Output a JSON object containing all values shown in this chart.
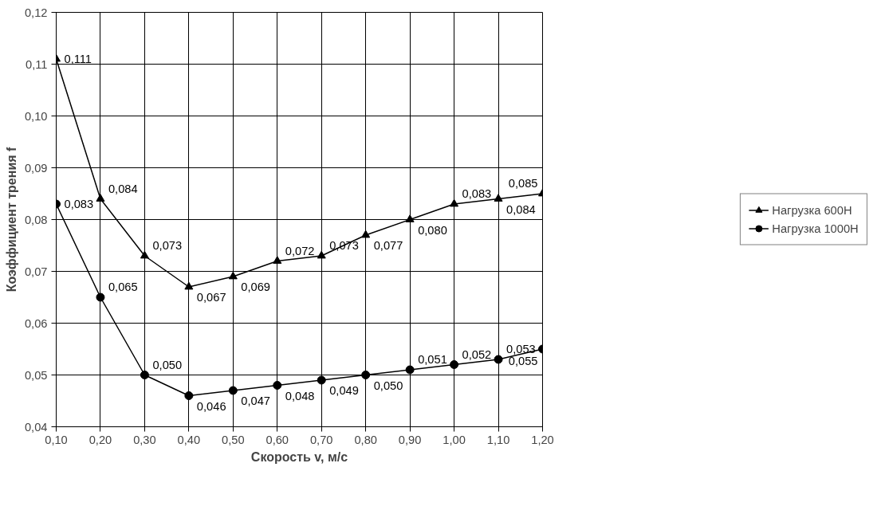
{
  "chart_data": {
    "type": "line",
    "xlabel": "Скорость v, м/с",
    "ylabel": "Коэффициент трения f",
    "x": [
      0.1,
      0.2,
      0.3,
      0.4,
      0.5,
      0.6,
      0.7,
      0.8,
      0.9,
      1.0,
      1.1,
      1.2
    ],
    "series": [
      {
        "name": "Нагрузка 600Н",
        "color": "#000000",
        "marker": "triangle",
        "values": [
          0.111,
          0.084,
          0.073,
          0.067,
          0.069,
          0.072,
          0.073,
          0.077,
          0.08,
          0.083,
          0.084,
          0.085
        ],
        "value_labels": [
          "0,111",
          "0,084",
          "0,073",
          "0,067",
          "0,069",
          "0,072",
          "0,073",
          "0,077",
          "0,080",
          "0,083",
          "0,084",
          "0,085"
        ]
      },
      {
        "name": "Нагрузка 1000Н",
        "color": "#000000",
        "marker": "circle",
        "values": [
          0.083,
          0.065,
          0.05,
          0.046,
          0.047,
          0.048,
          0.049,
          0.05,
          0.051,
          0.052,
          0.053,
          0.055
        ],
        "value_labels": [
          "0,083",
          "0,065",
          "0,050",
          "0,046",
          "0,047",
          "0,048",
          "0,049",
          "0,050",
          "0,051",
          "0,052",
          "0,053",
          "0,055"
        ]
      }
    ],
    "xlim": [
      0.1,
      1.2
    ],
    "xticks": [
      {
        "value": 0.1,
        "label": "0,10"
      },
      {
        "value": 0.2,
        "label": "0,20"
      },
      {
        "value": 0.3,
        "label": "0,30"
      },
      {
        "value": 0.4,
        "label": "0,40"
      },
      {
        "value": 0.5,
        "label": "0,50"
      },
      {
        "value": 0.6,
        "label": "0,60"
      },
      {
        "value": 0.7,
        "label": "0,70"
      },
      {
        "value": 0.8,
        "label": "0,80"
      },
      {
        "value": 0.9,
        "label": "0,90"
      },
      {
        "value": 1.0,
        "label": "1,00"
      },
      {
        "value": 1.1,
        "label": "1,10"
      },
      {
        "value": 1.2,
        "label": "1,20"
      }
    ],
    "ylim": [
      0.04,
      0.12
    ],
    "yticks": [
      {
        "value": 0.04,
        "label": "0,04"
      },
      {
        "value": 0.05,
        "label": "0,05"
      },
      {
        "value": 0.06,
        "label": "0,06"
      },
      {
        "value": 0.07,
        "label": "0,07"
      },
      {
        "value": 0.08,
        "label": "0,08"
      },
      {
        "value": 0.09,
        "label": "0,09"
      },
      {
        "value": 0.1,
        "label": "0,10"
      },
      {
        "value": 0.11,
        "label": "0,11"
      },
      {
        "value": 0.12,
        "label": "0,12"
      }
    ],
    "grid": true,
    "legend": "right",
    "line_style": "solid"
  }
}
